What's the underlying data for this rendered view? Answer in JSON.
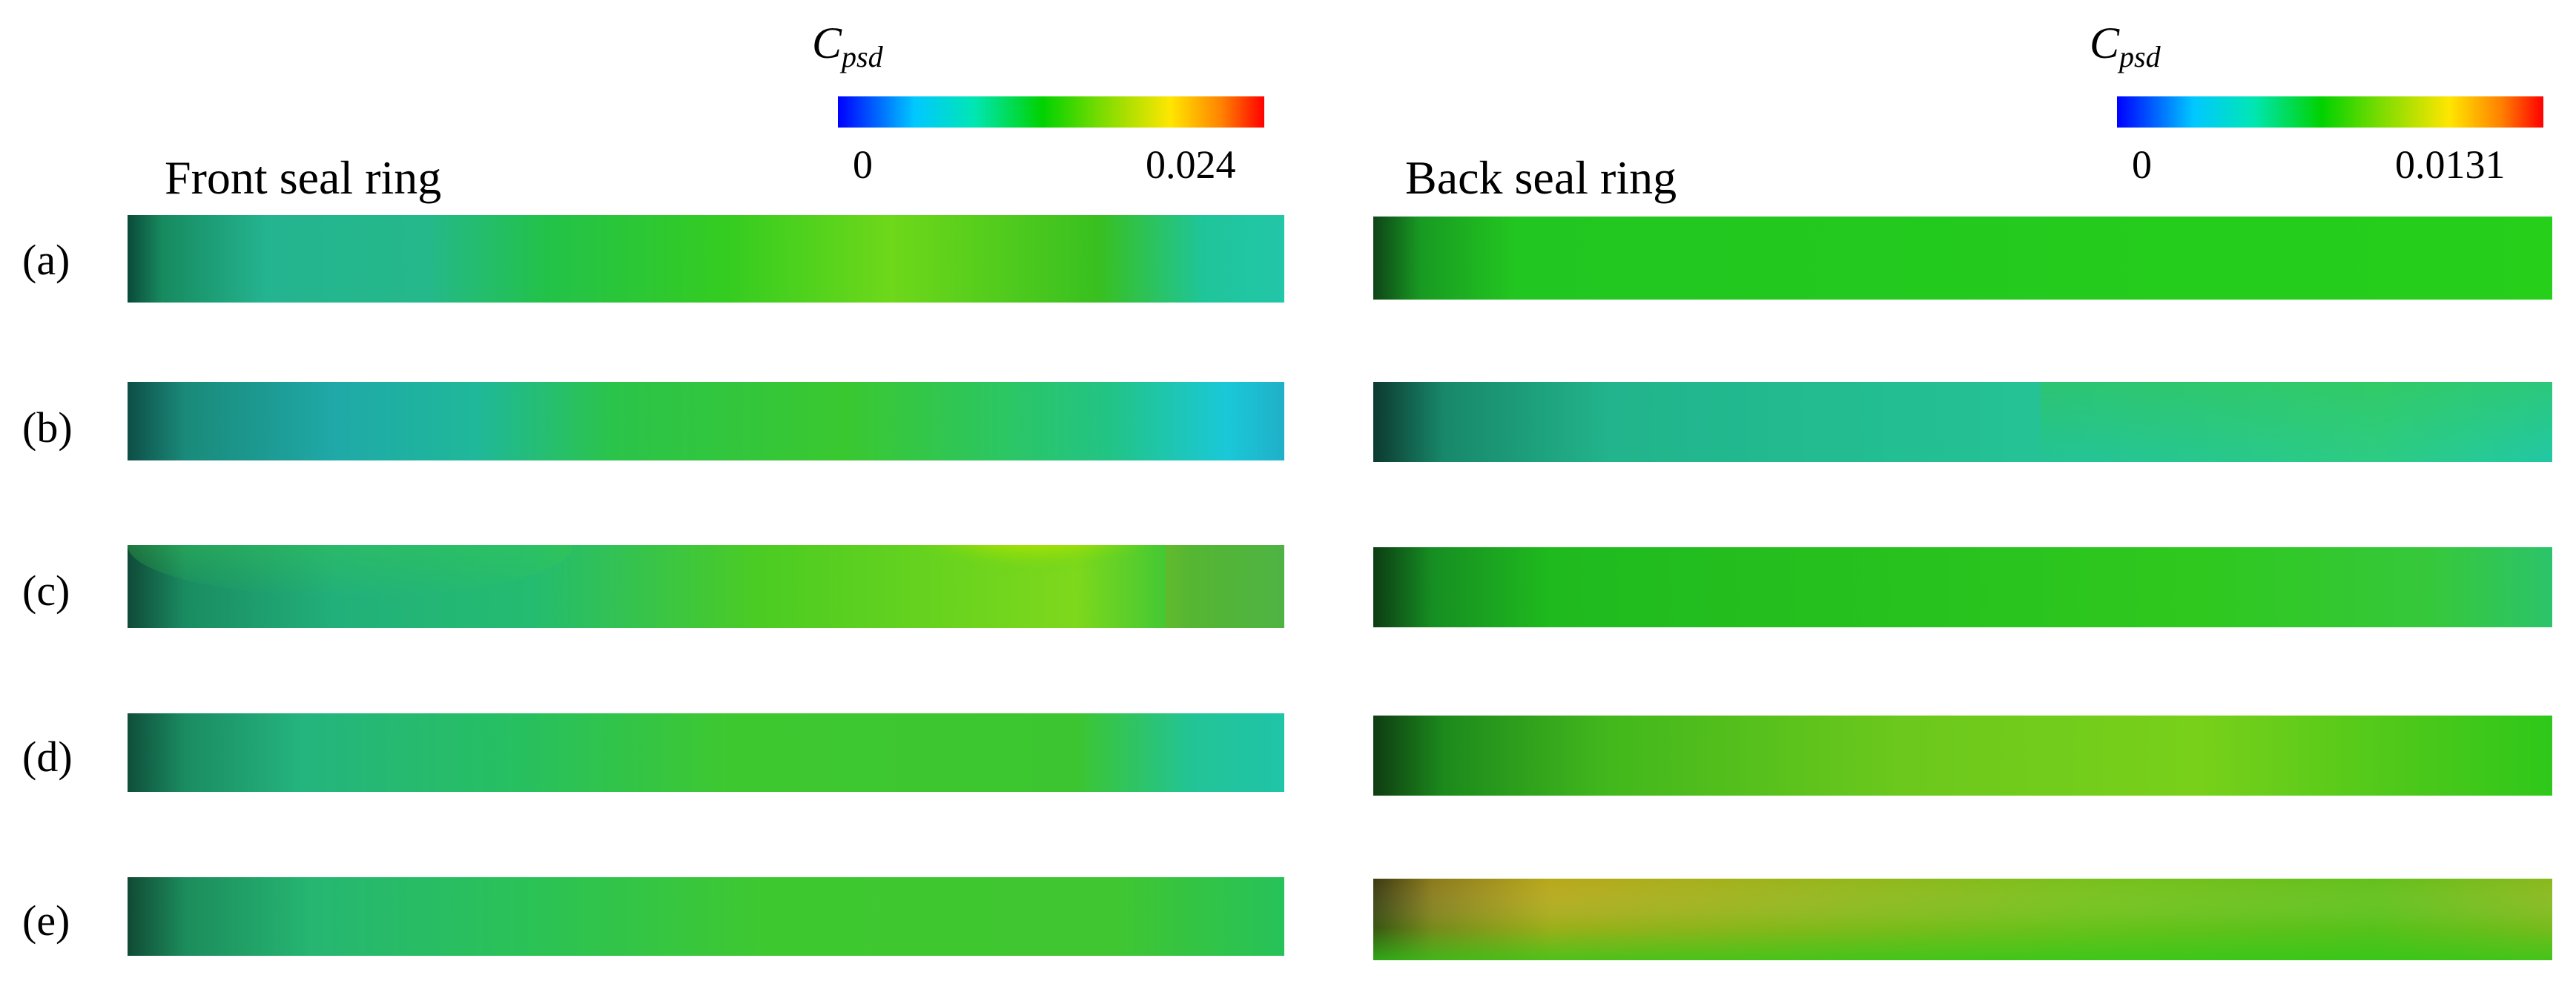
{
  "left": {
    "title": "Front seal ring",
    "colorbar": {
      "label_main": "C",
      "label_sub": "psd",
      "min": "0",
      "max": "0.024",
      "stops": [
        "#0000ff",
        "#00c8ff",
        "#00e6b4",
        "#00d200",
        "#7ddc00",
        "#ffe600",
        "#ff8200",
        "#ff0000"
      ]
    }
  },
  "right": {
    "title": "Back seal ring",
    "colorbar": {
      "label_main": "C",
      "label_sub": "psd",
      "min": "0",
      "max": "0.0131",
      "stops": [
        "#0000ff",
        "#00c8ff",
        "#00e6b4",
        "#00d200",
        "#7ddc00",
        "#ffe600",
        "#ff8200",
        "#ff0000"
      ]
    }
  },
  "rows": [
    {
      "label": "(a)"
    },
    {
      "label": "(b)"
    },
    {
      "label": "(c)"
    },
    {
      "label": "(d)"
    },
    {
      "label": "(e)"
    }
  ]
}
